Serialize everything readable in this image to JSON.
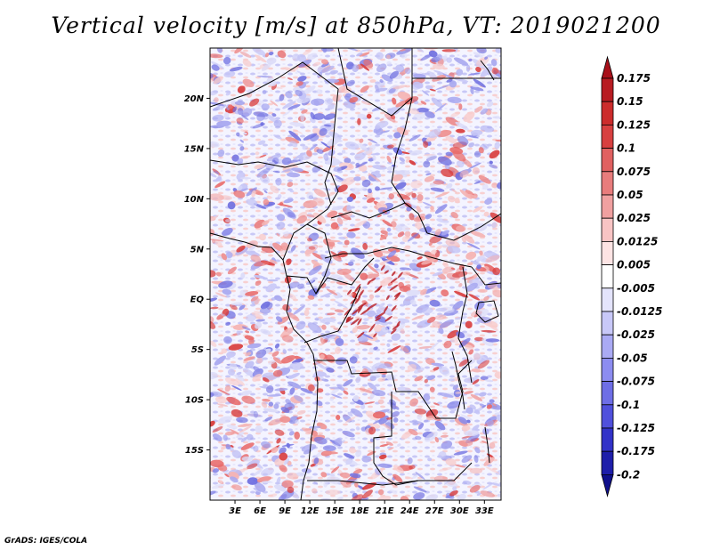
{
  "title": "Vertical velocity [m/s] at 850hPa, VT: 2019021200",
  "credit": "GrADS: IGES/COLA",
  "map": {
    "lon_range": [
      0,
      35
    ],
    "lat_range": [
      -20,
      25
    ],
    "lat_ticks": [
      {
        "value": 20,
        "label": "20N"
      },
      {
        "value": 15,
        "label": "15N"
      },
      {
        "value": 10,
        "label": "10N"
      },
      {
        "value": 5,
        "label": "5N"
      },
      {
        "value": 0,
        "label": "EQ"
      },
      {
        "value": -5,
        "label": "5S"
      },
      {
        "value": -10,
        "label": "10S"
      },
      {
        "value": -15,
        "label": "15S"
      }
    ],
    "lon_ticks": [
      {
        "value": 3,
        "label": "3E"
      },
      {
        "value": 6,
        "label": "6E"
      },
      {
        "value": 9,
        "label": "9E"
      },
      {
        "value": 12,
        "label": "12E"
      },
      {
        "value": 15,
        "label": "15E"
      },
      {
        "value": 18,
        "label": "18E"
      },
      {
        "value": 21,
        "label": "21E"
      },
      {
        "value": 24,
        "label": "24E"
      },
      {
        "value": 27,
        "label": "27E"
      },
      {
        "value": 30,
        "label": "30E"
      },
      {
        "value": 33,
        "label": "33E"
      }
    ]
  },
  "colorbar": {
    "levels": [
      "0.175",
      "0.15",
      "0.125",
      "0.1",
      "0.075",
      "0.05",
      "0.025",
      "0.0125",
      "0.005",
      "-0.005",
      "-0.0125",
      "-0.025",
      "-0.05",
      "-0.075",
      "-0.1",
      "-0.125",
      "-0.175",
      "-0.2"
    ],
    "colors": [
      "#a8101a",
      "#b81c22",
      "#cc2c2c",
      "#d84040",
      "#e06060",
      "#e87c7c",
      "#f0a0a0",
      "#f8c4c4",
      "#fde4e4",
      "#ffffff",
      "#e4e4fc",
      "#c8c8f8",
      "#aaaaf4",
      "#8c8cf0",
      "#6e6ee6",
      "#5050dc",
      "#3232c8",
      "#1e1eaa",
      "#10108c"
    ]
  },
  "colors": {
    "positive": "#d02828",
    "negative": "#3c3cd8",
    "border": "#000000"
  }
}
